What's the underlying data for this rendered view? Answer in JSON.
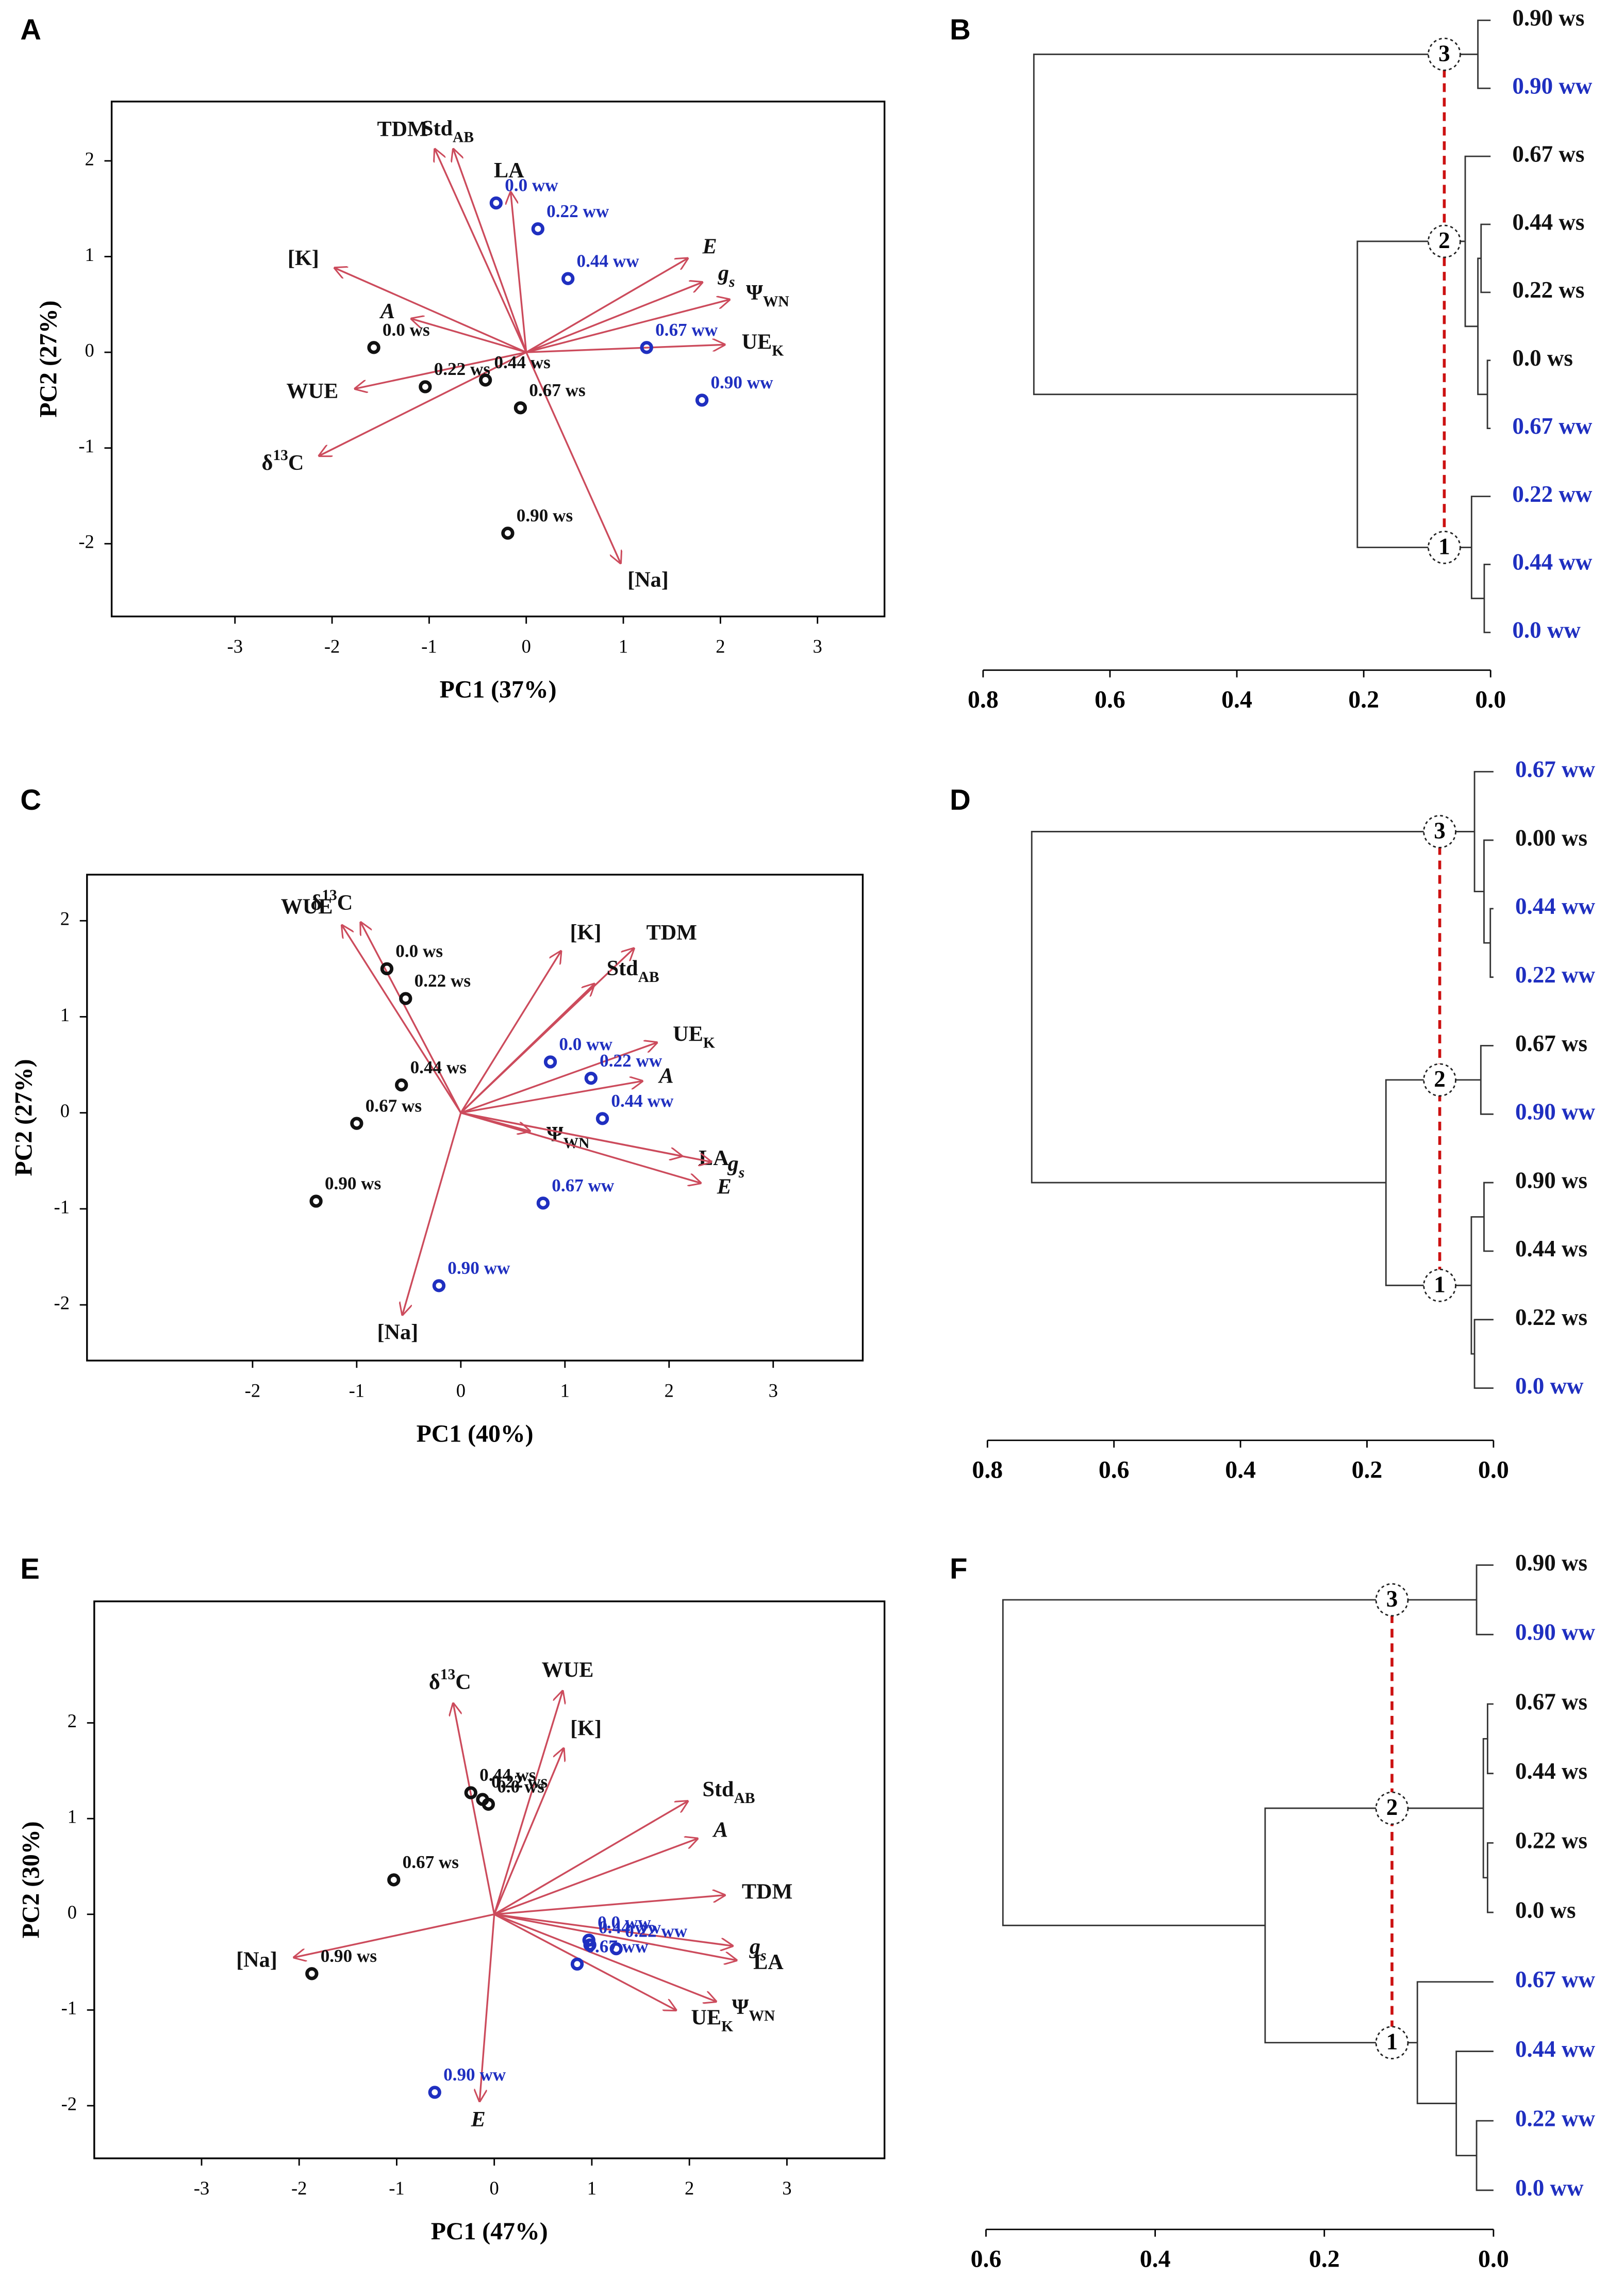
{
  "chart_data": [
    {
      "type": "biplot",
      "panel": "A",
      "xlabel": "PC1 (37%)",
      "ylabel": "PC2 (27%)",
      "xlim": [
        -4.27,
        3.69
      ],
      "ylim": [
        -2.76,
        2.62
      ],
      "xticks": [
        -3,
        -2,
        -1,
        0,
        1,
        2,
        3
      ],
      "yticks": [
        -2,
        -1,
        0,
        1,
        2
      ],
      "arrow_color": "#cc4b5c",
      "arrows": [
        {
          "label": [
            {
              "t": "TDM"
            }
          ],
          "x": -0.94,
          "y": 2.12
        },
        {
          "label": [
            {
              "t": "Std"
            },
            {
              "t": "AB",
              "sub": true
            }
          ],
          "x": -0.75,
          "y": 2.12
        },
        {
          "label": [
            {
              "t": "LA"
            }
          ],
          "x": -0.16,
          "y": 1.67
        },
        {
          "label": [
            {
              "t": "[K]"
            }
          ],
          "x": -1.97,
          "y": 0.88
        },
        {
          "label": [
            {
              "t": "A",
              "i": true
            }
          ],
          "x": -1.18,
          "y": 0.35
        },
        {
          "label": [
            {
              "t": "WUE"
            }
          ],
          "x": -1.76,
          "y": -0.38
        },
        {
          "label": [
            {
              "t": "δ"
            },
            {
              "t": "13",
              "sup": true
            },
            {
              "t": "C"
            }
          ],
          "x": -2.13,
          "y": -1.08
        },
        {
          "label": [
            {
              "t": "[Na]"
            }
          ],
          "x": 0.97,
          "y": -2.2
        },
        {
          "label": [
            {
              "t": "E",
              "i": true
            }
          ],
          "x": 1.66,
          "y": 0.98
        },
        {
          "label": [
            {
              "t": "g",
              "i": true
            },
            {
              "t": "s",
              "i": true,
              "sub": true
            }
          ],
          "x": 1.81,
          "y": 0.73
        },
        {
          "label": [
            {
              "t": "Ψ"
            },
            {
              "t": "WN",
              "sub": true
            }
          ],
          "x": 2.09,
          "y": 0.55
        },
        {
          "label": [
            {
              "t": "UE"
            },
            {
              "t": "K",
              "sub": true
            }
          ],
          "x": 2.04,
          "y": 0.08
        }
      ],
      "points": [
        {
          "name": "0.0 ws",
          "x": -1.57,
          "y": 0.05,
          "color": "#111111"
        },
        {
          "name": "0.22 ws",
          "x": -1.04,
          "y": -0.36,
          "color": "#111111"
        },
        {
          "name": "0.44 ws",
          "x": -0.42,
          "y": -0.29,
          "color": "#111111"
        },
        {
          "name": "0.67 ws",
          "x": -0.06,
          "y": -0.58,
          "color": "#111111"
        },
        {
          "name": "0.90 ws",
          "x": -0.19,
          "y": -1.89,
          "color": "#111111"
        },
        {
          "name": "0.0 ww",
          "x": -0.31,
          "y": 1.56,
          "color": "#1f2fc0"
        },
        {
          "name": "0.22 ww",
          "x": 0.12,
          "y": 1.29,
          "color": "#1f2fc0"
        },
        {
          "name": "0.44 ww",
          "x": 0.43,
          "y": 0.77,
          "color": "#1f2fc0"
        },
        {
          "name": "0.67 ww",
          "x": 1.24,
          "y": 0.05,
          "color": "#1f2fc0"
        },
        {
          "name": "0.90 ww",
          "x": 1.81,
          "y": -0.5,
          "color": "#1f2fc0"
        }
      ]
    },
    {
      "type": "dendrogram",
      "panel": "B",
      "xlim": [
        0.8,
        0
      ],
      "xticks": [
        0.8,
        0.6,
        0.4,
        0.2,
        {
          "value": 0,
          "label": "0.0"
        }
      ],
      "leaves": [
        {
          "name": "0.90 ws",
          "color": "#111111"
        },
        {
          "name": "0.90 ww",
          "color": "#1f2fc0"
        },
        {
          "name": "0.67 ws",
          "color": "#111111"
        },
        {
          "name": "0.44 ws",
          "color": "#111111"
        },
        {
          "name": "0.22 ws",
          "color": "#111111"
        },
        {
          "name": "0.0 ws",
          "color": "#111111"
        },
        {
          "name": "0.67 ww",
          "color": "#1f2fc0"
        },
        {
          "name": "0.22 ww",
          "color": "#1f2fc0"
        },
        {
          "name": "0.44 ww",
          "color": "#1f2fc0"
        },
        {
          "name": "0.0 ww",
          "color": "#1f2fc0"
        }
      ],
      "merges": [
        [
          0,
          1,
          0.02
        ],
        [
          5,
          6,
          0.005
        ],
        [
          3,
          4,
          0.015
        ],
        [
          12,
          11,
          0.02
        ],
        [
          2,
          13,
          0.04
        ],
        [
          8,
          9,
          0.01
        ],
        [
          7,
          15,
          0.03
        ],
        [
          14,
          16,
          0.21
        ],
        [
          10,
          17,
          0.72
        ]
      ],
      "cut": 0.073,
      "cut_color": "#cc1111",
      "clusters": [
        {
          "label": "3",
          "node": 10
        },
        {
          "label": "2",
          "node": 14
        },
        {
          "label": "1",
          "node": 16
        }
      ]
    },
    {
      "type": "biplot",
      "panel": "C",
      "xlabel": "PC1 (40%)",
      "ylabel": "PC2 (27%)",
      "xlim": [
        -3.59,
        3.86
      ],
      "ylim": [
        -2.58,
        2.48
      ],
      "xticks": [
        -2,
        -1,
        0,
        1,
        2,
        3
      ],
      "yticks": [
        -2,
        -1,
        0,
        1,
        2
      ],
      "arrow_color": "#cc4b5c",
      "arrows": [
        {
          "label": [
            {
              "t": "WUE"
            }
          ],
          "x": -1.14,
          "y": 1.95
        },
        {
          "label": [
            {
              "t": "δ"
            },
            {
              "t": "13",
              "sup": true
            },
            {
              "t": "C"
            }
          ],
          "x": -0.96,
          "y": 1.98
        },
        {
          "label": [
            {
              "t": "[K]"
            }
          ],
          "x": 0.96,
          "y": 1.68
        },
        {
          "label": [
            {
              "t": "TDM"
            }
          ],
          "x": 1.66,
          "y": 1.71
        },
        {
          "label": [
            {
              "t": "Std"
            },
            {
              "t": "AB",
              "sub": true
            }
          ],
          "x": 1.28,
          "y": 1.34
        },
        {
          "label": [
            {
              "t": "UE"
            },
            {
              "t": "K",
              "sub": true
            }
          ],
          "x": 1.88,
          "y": 0.73
        },
        {
          "label": [
            {
              "t": "A",
              "i": true
            }
          ],
          "x": 1.74,
          "y": 0.33
        },
        {
          "label": [
            {
              "t": "Ψ"
            },
            {
              "t": "WN",
              "sub": true
            }
          ],
          "x": 0.66,
          "y": -0.19
        },
        {
          "label": [
            {
              "t": "LA"
            }
          ],
          "x": 2.12,
          "y": -0.45
        },
        {
          "label": [
            {
              "t": "g",
              "i": true
            },
            {
              "t": "s",
              "i": true,
              "sub": true
            }
          ],
          "x": 2.4,
          "y": -0.51
        },
        {
          "label": [
            {
              "t": "E",
              "i": true
            }
          ],
          "x": 2.3,
          "y": -0.73
        },
        {
          "label": [
            {
              "t": "[Na]"
            }
          ],
          "x": -0.56,
          "y": -2.1
        }
      ],
      "points": [
        {
          "name": "0.0 ws",
          "x": -0.71,
          "y": 1.5,
          "color": "#111111"
        },
        {
          "name": "0.22 ws",
          "x": -0.53,
          "y": 1.19,
          "color": "#111111"
        },
        {
          "name": "0.44 ws",
          "x": -0.57,
          "y": 0.29,
          "color": "#111111"
        },
        {
          "name": "0.67 ws",
          "x": -1.0,
          "y": -0.11,
          "color": "#111111"
        },
        {
          "name": "0.90 ws",
          "x": -1.39,
          "y": -0.92,
          "color": "#111111"
        },
        {
          "name": "0.0 ww",
          "x": 0.86,
          "y": 0.53,
          "color": "#1f2fc0"
        },
        {
          "name": "0.22 ww",
          "x": 1.25,
          "y": 0.36,
          "color": "#1f2fc0"
        },
        {
          "name": "0.44 ww",
          "x": 1.36,
          "y": -0.06,
          "color": "#1f2fc0"
        },
        {
          "name": "0.67 ww",
          "x": 0.79,
          "y": -0.94,
          "color": "#1f2fc0"
        },
        {
          "name": "0.90 ww",
          "x": -0.21,
          "y": -1.8,
          "color": "#1f2fc0"
        }
      ]
    },
    {
      "type": "dendrogram",
      "panel": "D",
      "xlim": [
        0.8,
        0
      ],
      "xticks": [
        0.8,
        0.6,
        0.4,
        0.2,
        {
          "value": 0,
          "label": "0.0"
        }
      ],
      "leaves": [
        {
          "name": "0.67 ww",
          "color": "#1f2fc0"
        },
        {
          "name": "0.00 ws",
          "color": "#111111"
        },
        {
          "name": "0.44 ww",
          "color": "#1f2fc0"
        },
        {
          "name": "0.22 ww",
          "color": "#1f2fc0"
        },
        {
          "name": "0.67 ws",
          "color": "#111111"
        },
        {
          "name": "0.90 ww",
          "color": "#1f2fc0"
        },
        {
          "name": "0.90 ws",
          "color": "#111111"
        },
        {
          "name": "0.44 ws",
          "color": "#111111"
        },
        {
          "name": "0.22 ws",
          "color": "#111111"
        },
        {
          "name": "0.0 ww",
          "color": "#1f2fc0"
        }
      ],
      "merges": [
        [
          2,
          3,
          0.005
        ],
        [
          1,
          10,
          0.015
        ],
        [
          0,
          11,
          0.03
        ],
        [
          4,
          5,
          0.02
        ],
        [
          6,
          7,
          0.015
        ],
        [
          8,
          9,
          0.03
        ],
        [
          14,
          15,
          0.035
        ],
        [
          13,
          16,
          0.17
        ],
        [
          12,
          17,
          0.73
        ]
      ],
      "cut": 0.085,
      "cut_color": "#cc1111",
      "clusters": [
        {
          "label": "3",
          "node": 12
        },
        {
          "label": "2",
          "node": 13
        },
        {
          "label": "1",
          "node": 16
        }
      ]
    },
    {
      "type": "biplot",
      "panel": "E",
      "xlabel": "PC1 (47%)",
      "ylabel": "PC2 (30%)",
      "xlim": [
        -4.1,
        4.0
      ],
      "ylim": [
        -2.55,
        3.27
      ],
      "xticks": [
        -3,
        -2,
        -1,
        0,
        1,
        2,
        3
      ],
      "yticks": [
        -2,
        -1,
        0,
        1,
        2
      ],
      "arrow_color": "#cc4b5c",
      "arrows": [
        {
          "label": [
            {
              "t": "δ"
            },
            {
              "t": "13",
              "sup": true
            },
            {
              "t": "C"
            }
          ],
          "x": -0.42,
          "y": 2.2
        },
        {
          "label": [
            {
              "t": "WUE"
            }
          ],
          "x": 0.7,
          "y": 2.33
        },
        {
          "label": [
            {
              "t": "[K]"
            }
          ],
          "x": 0.71,
          "y": 1.73
        },
        {
          "label": [
            {
              "t": "Std"
            },
            {
              "t": "AB",
              "sub": true
            }
          ],
          "x": 1.98,
          "y": 1.18
        },
        {
          "label": [
            {
              "t": "A",
              "i": true
            }
          ],
          "x": 2.08,
          "y": 0.79
        },
        {
          "label": [
            {
              "t": "TDM"
            }
          ],
          "x": 2.36,
          "y": 0.2
        },
        {
          "label": [
            {
              "t": "g",
              "i": true
            },
            {
              "t": "s",
              "i": true,
              "sub": true
            }
          ],
          "x": 2.44,
          "y": -0.33
        },
        {
          "label": [
            {
              "t": "LA"
            }
          ],
          "x": 2.48,
          "y": -0.48
        },
        {
          "label": [
            {
              "t": "Ψ"
            },
            {
              "t": "WN",
              "sub": true
            }
          ],
          "x": 2.27,
          "y": -0.91
        },
        {
          "label": [
            {
              "t": "UE"
            },
            {
              "t": "K",
              "sub": true
            }
          ],
          "x": 1.86,
          "y": -1.0
        },
        {
          "label": [
            {
              "t": "[Na]"
            }
          ],
          "x": -2.05,
          "y": -0.45
        },
        {
          "label": [
            {
              "t": "E",
              "i": true
            }
          ],
          "x": -0.15,
          "y": -1.95
        }
      ],
      "points": [
        {
          "name": "0.44 ws",
          "x": -0.24,
          "y": 1.27,
          "color": "#111111"
        },
        {
          "name": "0.22 ws",
          "x": -0.12,
          "y": 1.2,
          "color": "#111111"
        },
        {
          "name": "0.0 ws",
          "x": -0.06,
          "y": 1.15,
          "color": "#111111"
        },
        {
          "name": "0.67 ws",
          "x": -1.03,
          "y": 0.36,
          "color": "#111111"
        },
        {
          "name": "0.90 ws",
          "x": -1.87,
          "y": -0.62,
          "color": "#111111"
        },
        {
          "name": "0.0 ww",
          "x": 0.97,
          "y": -0.27,
          "color": "#1f2fc0"
        },
        {
          "name": "0.44 ww",
          "x": 0.98,
          "y": -0.32,
          "color": "#1f2fc0"
        },
        {
          "name": "0.22 ww",
          "x": 1.25,
          "y": -0.36,
          "color": "#1f2fc0"
        },
        {
          "name": "0.67 ww",
          "x": 0.85,
          "y": -0.52,
          "color": "#1f2fc0"
        },
        {
          "name": "0.90 ww",
          "x": -0.61,
          "y": -1.86,
          "color": "#1f2fc0"
        }
      ]
    },
    {
      "type": "dendrogram",
      "panel": "F",
      "xlim": [
        0.6,
        0
      ],
      "xticks": [
        0.6,
        0.4,
        0.2,
        {
          "value": 0,
          "label": "0.0"
        }
      ],
      "leaves": [
        {
          "name": "0.90 ws",
          "color": "#111111"
        },
        {
          "name": "0.90 ww",
          "color": "#1f2fc0"
        },
        {
          "name": "0.67 ws",
          "color": "#111111"
        },
        {
          "name": "0.44 ws",
          "color": "#111111"
        },
        {
          "name": "0.22 ws",
          "color": "#111111"
        },
        {
          "name": "0.0 ws",
          "color": "#111111"
        },
        {
          "name": "0.67 ww",
          "color": "#1f2fc0"
        },
        {
          "name": "0.44 ww",
          "color": "#1f2fc0"
        },
        {
          "name": "0.22 ww",
          "color": "#1f2fc0"
        },
        {
          "name": "0.0 ww",
          "color": "#1f2fc0"
        }
      ],
      "merges": [
        [
          0,
          1,
          0.02
        ],
        [
          2,
          3,
          0.007
        ],
        [
          4,
          5,
          0.007
        ],
        [
          11,
          12,
          0.012
        ],
        [
          8,
          9,
          0.02
        ],
        [
          7,
          14,
          0.044
        ],
        [
          6,
          15,
          0.09
        ],
        [
          13,
          16,
          0.27
        ],
        [
          10,
          17,
          0.58
        ]
      ],
      "cut": 0.12,
      "cut_color": "#cc1111",
      "clusters": [
        {
          "label": "3",
          "node": 10
        },
        {
          "label": "2",
          "node": 13
        },
        {
          "label": "1",
          "node": 16
        }
      ]
    }
  ]
}
